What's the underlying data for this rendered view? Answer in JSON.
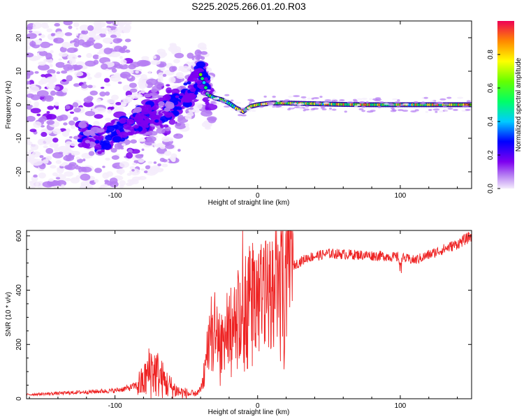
{
  "title": "S225.2025.266.01.20.R03",
  "chart_data": [
    {
      "type": "heatmap",
      "title": "S225.2025.266.01.20.R03",
      "xlabel": "Height of straight line (km)",
      "ylabel": "Frequency (Hz)",
      "xlim": [
        -162,
        150
      ],
      "ylim": [
        -25,
        25
      ],
      "xticks": [
        -100,
        0,
        100
      ],
      "yticks": [
        -20,
        -10,
        0,
        10,
        20
      ],
      "colorbar": {
        "label": "Normalized spectral amplitude",
        "range": [
          0,
          1
        ],
        "ticks": [
          0.0,
          0.2,
          0.4,
          0.6,
          0.8
        ],
        "tick_labels": [
          "0.0",
          "0.2",
          "0.4",
          "0.6",
          "0.8"
        ]
      },
      "ridge": {
        "x": [
          -120,
          -110,
          -100,
          -90,
          -80,
          -70,
          -60,
          -50,
          -45,
          -40,
          -37,
          -35,
          -30,
          -25,
          -20,
          -15,
          -10,
          -5,
          0,
          10,
          20,
          40,
          60,
          80,
          100,
          120,
          150
        ],
        "y": [
          -9,
          -11,
          -8,
          -6,
          -4,
          -2,
          0,
          3,
          6,
          9,
          6,
          3,
          2,
          1.5,
          0.5,
          -1,
          -2,
          -0.5,
          0,
          0.5,
          0.5,
          0.3,
          0.1,
          0,
          0,
          0,
          0
        ]
      }
    },
    {
      "type": "line",
      "xlabel": "Height of straight line (km)",
      "ylabel": "SNR (10 * v/v)",
      "xlim": [
        -162,
        150
      ],
      "ylim": [
        0,
        620
      ],
      "xticks": [
        -100,
        0,
        100
      ],
      "yticks": [
        0,
        200,
        400,
        600
      ],
      "series": [
        {
          "name": "SNR",
          "color": "#ee2222",
          "x": [
            -162,
            -140,
            -120,
            -100,
            -90,
            -80,
            -75,
            -70,
            -65,
            -60,
            -55,
            -50,
            -45,
            -40,
            -38,
            -35,
            -30,
            -25,
            -20,
            -15,
            -10,
            -5,
            0,
            5,
            10,
            15,
            18,
            25,
            35,
            50,
            70,
            90,
            100,
            110,
            120,
            130,
            140,
            150
          ],
          "y": [
            15,
            20,
            25,
            30,
            40,
            60,
            110,
            90,
            60,
            40,
            25,
            20,
            15,
            30,
            80,
            180,
            260,
            200,
            260,
            300,
            350,
            360,
            390,
            380,
            400,
            420,
            450,
            490,
            520,
            535,
            530,
            525,
            520,
            510,
            530,
            550,
            570,
            600
          ]
        }
      ]
    }
  ]
}
